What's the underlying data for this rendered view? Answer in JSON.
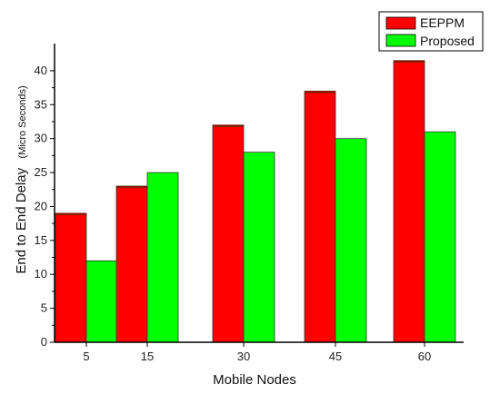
{
  "chart_data": {
    "type": "bar",
    "title": "",
    "xlabel": "Mobile Nodes",
    "ylabel": "End to End Delay",
    "ylabel_unit": "(Micro Seconds)",
    "categories": [
      "5",
      "15",
      "30",
      "45",
      "60"
    ],
    "series": [
      {
        "name": "EEPPM",
        "color": "#ff0000",
        "values": [
          19,
          23,
          32,
          37,
          41.5
        ]
      },
      {
        "name": "Proposed",
        "color": "#00ff00",
        "values": [
          12,
          25,
          28,
          30,
          31
        ]
      }
    ],
    "ylim": [
      0,
      44
    ],
    "yticks": [
      0,
      5,
      10,
      15,
      20,
      25,
      30,
      35,
      40
    ],
    "grid": false,
    "legend": "top-right"
  }
}
